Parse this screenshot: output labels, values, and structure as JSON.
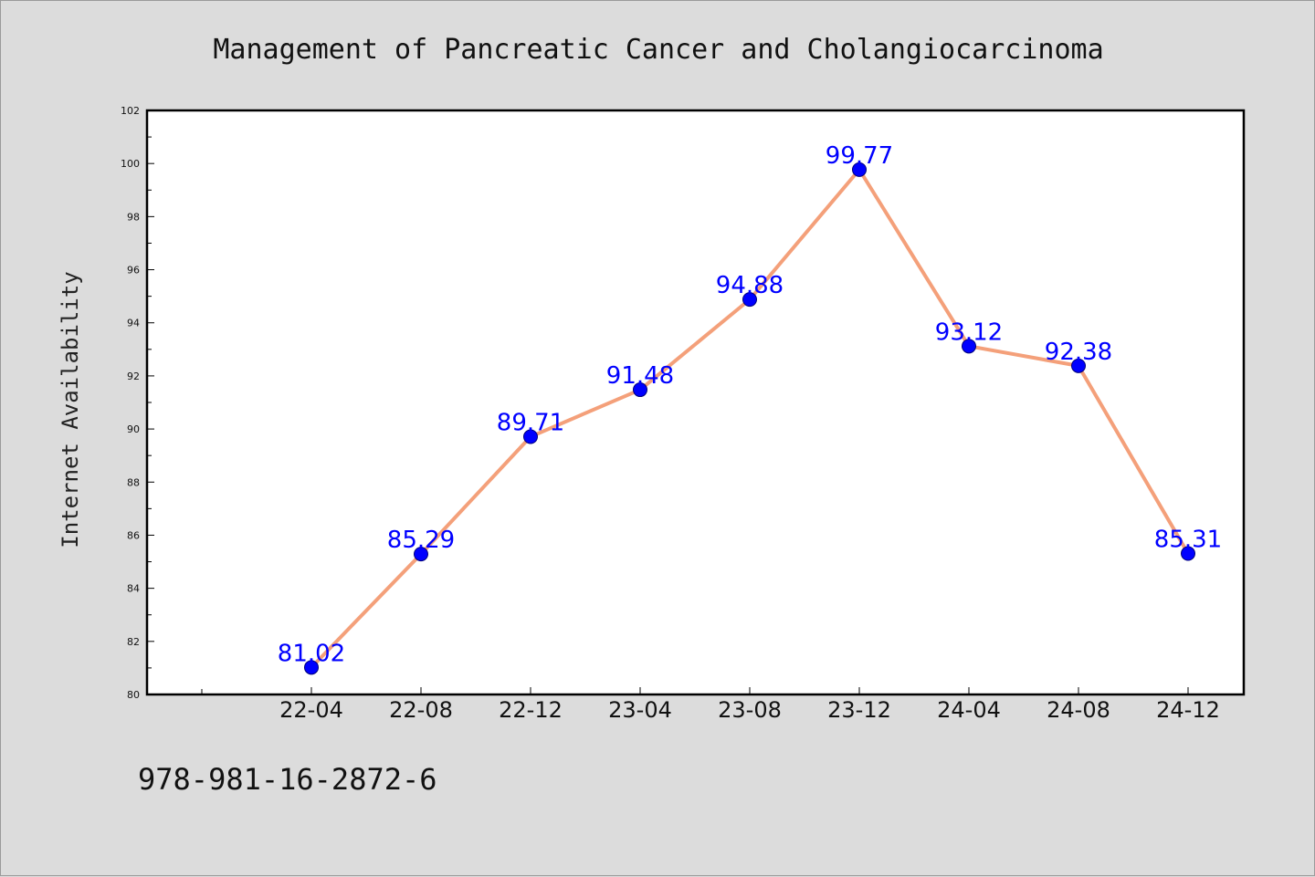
{
  "chart_data": {
    "type": "line",
    "title": "Management of Pancreatic Cancer and Cholangiocarcinoma",
    "xlabel": "",
    "ylabel": "Internet Availability",
    "categories": [
      "22-04",
      "22-08",
      "22-12",
      "23-04",
      "23-08",
      "23-12",
      "24-04",
      "24-08",
      "24-12"
    ],
    "series": [
      {
        "values": [
          81.02,
          85.29,
          89.71,
          91.48,
          94.88,
          99.77,
          93.12,
          92.38,
          85.31
        ],
        "data_labels": [
          "81.02",
          "85.29",
          "89.71",
          "91.48",
          "94.88",
          "99.77",
          "93.12",
          "92.38",
          "85.31"
        ],
        "line_color": "#f4a07a",
        "marker_color": "#0000ff"
      }
    ],
    "ylim": [
      80,
      102
    ],
    "yticks": [
      "80",
      "82",
      "84",
      "86",
      "88",
      "90",
      "92",
      "94",
      "96",
      "98",
      "100",
      "102"
    ],
    "grid": false,
    "legend": "none"
  },
  "footer": {
    "isbn": "978-981-16-2872-6"
  }
}
